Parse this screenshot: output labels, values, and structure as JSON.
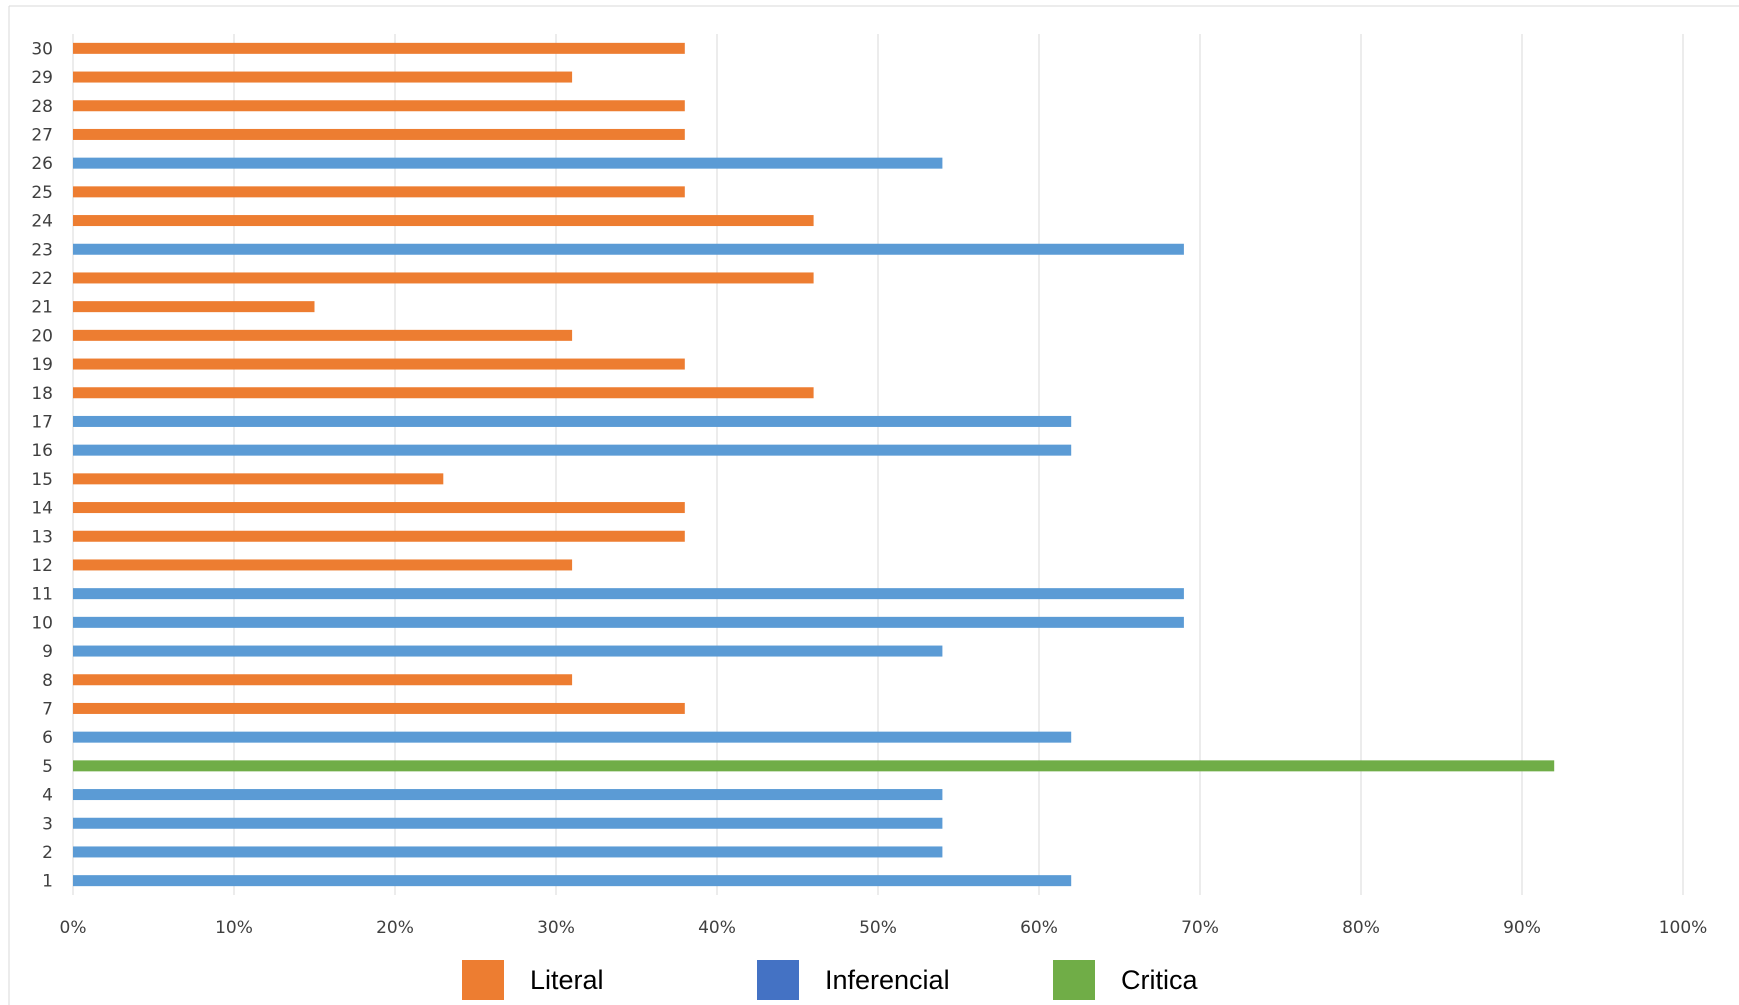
{
  "chart_data": {
    "type": "bar",
    "orientation": "horizontal",
    "title": "",
    "xlabel": "",
    "ylabel": "",
    "xlim": [
      0,
      100
    ],
    "x_ticks": [
      "0%",
      "10%",
      "20%",
      "30%",
      "40%",
      "50%",
      "60%",
      "70%",
      "80%",
      "90%",
      "100%"
    ],
    "grid": "vertical",
    "legend_position": "bottom",
    "categories": [
      "1",
      "2",
      "3",
      "4",
      "5",
      "6",
      "7",
      "8",
      "9",
      "10",
      "11",
      "12",
      "13",
      "14",
      "15",
      "16",
      "17",
      "18",
      "19",
      "20",
      "21",
      "22",
      "23",
      "24",
      "25",
      "26",
      "27",
      "28",
      "29",
      "30"
    ],
    "values": [
      62,
      54,
      54,
      54,
      92,
      62,
      38,
      31,
      54,
      69,
      69,
      31,
      38,
      38,
      23,
      62,
      62,
      46,
      38,
      31,
      15,
      46,
      69,
      46,
      38,
      54,
      38,
      38,
      31,
      38
    ],
    "bar_series": [
      "Inferencial",
      "Inferencial",
      "Inferencial",
      "Inferencial",
      "Critica",
      "Inferencial",
      "Literal",
      "Literal",
      "Inferencial",
      "Inferencial",
      "Inferencial",
      "Literal",
      "Literal",
      "Literal",
      "Literal",
      "Inferencial",
      "Inferencial",
      "Literal",
      "Literal",
      "Literal",
      "Literal",
      "Literal",
      "Inferencial",
      "Literal",
      "Literal",
      "Inferencial",
      "Literal",
      "Literal",
      "Literal",
      "Literal"
    ],
    "series": [
      {
        "name": "Literal",
        "color": "#ED7D31"
      },
      {
        "name": "Inferencial",
        "color": "#4472C4"
      },
      {
        "name": "Critica",
        "color": "#70AD47"
      }
    ],
    "bar_colors": {
      "Literal": "#ED7D31",
      "Inferencial": "#5B9BD5",
      "Critica": "#70AD47"
    }
  }
}
